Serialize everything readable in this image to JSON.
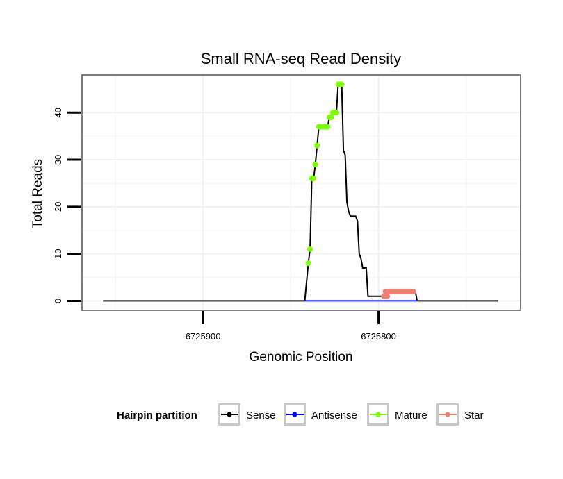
{
  "chart_data": {
    "type": "line",
    "title": "Small RNA-seq Read Density",
    "xlabel": "Genomic Position",
    "ylabel": "Total Reads",
    "x_reversed": true,
    "xlim": [
      6725969,
      6725719
    ],
    "ylim": [
      -2,
      48
    ],
    "x_ticks": [
      6725900,
      6725800
    ],
    "y_ticks": [
      0,
      10,
      20,
      30,
      40
    ],
    "grid": true,
    "legend_position": "bottom",
    "legend_title": "Hairpin partition",
    "series": [
      {
        "name": "Sense",
        "color": "#000000",
        "points": [
          [
            6725957,
            0
          ],
          [
            6725842,
            0
          ],
          [
            6725840,
            8
          ],
          [
            6725839,
            11
          ],
          [
            6725838,
            26
          ],
          [
            6725837,
            26
          ],
          [
            6725836,
            29
          ],
          [
            6725835,
            33
          ],
          [
            6725834,
            37
          ],
          [
            6725833,
            37
          ],
          [
            6725832,
            37
          ],
          [
            6725831,
            37
          ],
          [
            6725830,
            37
          ],
          [
            6725829,
            37
          ],
          [
            6725828,
            39
          ],
          [
            6725827,
            39
          ],
          [
            6725826,
            40
          ],
          [
            6725825,
            40
          ],
          [
            6725824,
            40
          ],
          [
            6725823,
            46
          ],
          [
            6725822,
            46
          ],
          [
            6725821,
            46
          ],
          [
            6725820,
            32
          ],
          [
            6725819,
            31
          ],
          [
            6725818,
            21
          ],
          [
            6725817,
            19
          ],
          [
            6725816,
            18
          ],
          [
            6725815,
            18
          ],
          [
            6725814,
            18
          ],
          [
            6725813,
            18
          ],
          [
            6725812,
            17
          ],
          [
            6725811,
            10
          ],
          [
            6725810,
            9
          ],
          [
            6725809,
            7
          ],
          [
            6725808,
            7
          ],
          [
            6725807,
            7
          ],
          [
            6725806,
            1
          ],
          [
            6725805,
            1
          ],
          [
            6725804,
            1
          ],
          [
            6725803,
            1
          ],
          [
            6725802,
            1
          ],
          [
            6725801,
            1
          ],
          [
            6725800,
            1
          ],
          [
            6725799,
            1
          ],
          [
            6725798,
            1
          ],
          [
            6725797,
            1
          ],
          [
            6725796,
            2
          ],
          [
            6725795,
            2
          ],
          [
            6725794,
            2
          ],
          [
            6725793,
            2
          ],
          [
            6725792,
            2
          ],
          [
            6725791,
            2
          ],
          [
            6725790,
            2
          ],
          [
            6725789,
            2
          ],
          [
            6725788,
            2
          ],
          [
            6725787,
            2
          ],
          [
            6725786,
            2
          ],
          [
            6725785,
            2
          ],
          [
            6725784,
            2
          ],
          [
            6725783,
            2
          ],
          [
            6725782,
            2
          ],
          [
            6725781,
            2
          ],
          [
            6725780,
            2
          ],
          [
            6725779,
            2
          ],
          [
            6725778,
            0
          ],
          [
            6725732,
            0
          ]
        ]
      },
      {
        "name": "Antisense",
        "color": "#0000ff",
        "points": [
          [
            6725842,
            0
          ],
          [
            6725778,
            0
          ]
        ]
      },
      {
        "name": "Mature",
        "color": "#7cfc00",
        "points": [
          [
            6725840,
            8
          ],
          [
            6725839,
            11
          ],
          [
            6725838,
            26
          ],
          [
            6725837,
            26
          ],
          [
            6725836,
            29
          ],
          [
            6725835,
            33
          ],
          [
            6725834,
            37
          ],
          [
            6725833,
            37
          ],
          [
            6725832,
            37
          ],
          [
            6725831,
            37
          ],
          [
            6725830,
            37
          ],
          [
            6725829,
            37
          ],
          [
            6725828,
            39
          ],
          [
            6725827,
            39
          ],
          [
            6725826,
            40
          ],
          [
            6725825,
            40
          ],
          [
            6725824,
            40
          ],
          [
            6725823,
            46
          ],
          [
            6725822,
            46
          ],
          [
            6725821,
            46
          ]
        ]
      },
      {
        "name": "Star",
        "color": "#f08070",
        "points": [
          [
            6725797,
            1
          ],
          [
            6725796,
            1
          ],
          [
            6725795,
            1
          ],
          [
            6725796,
            2
          ],
          [
            6725795,
            2
          ],
          [
            6725794,
            2
          ],
          [
            6725793,
            2
          ],
          [
            6725792,
            2
          ],
          [
            6725791,
            2
          ],
          [
            6725790,
            2
          ],
          [
            6725789,
            2
          ],
          [
            6725788,
            2
          ],
          [
            6725787,
            2
          ],
          [
            6725786,
            2
          ],
          [
            6725785,
            2
          ],
          [
            6725784,
            2
          ],
          [
            6725783,
            2
          ],
          [
            6725782,
            2
          ],
          [
            6725781,
            2
          ],
          [
            6725780,
            2
          ]
        ]
      }
    ]
  }
}
